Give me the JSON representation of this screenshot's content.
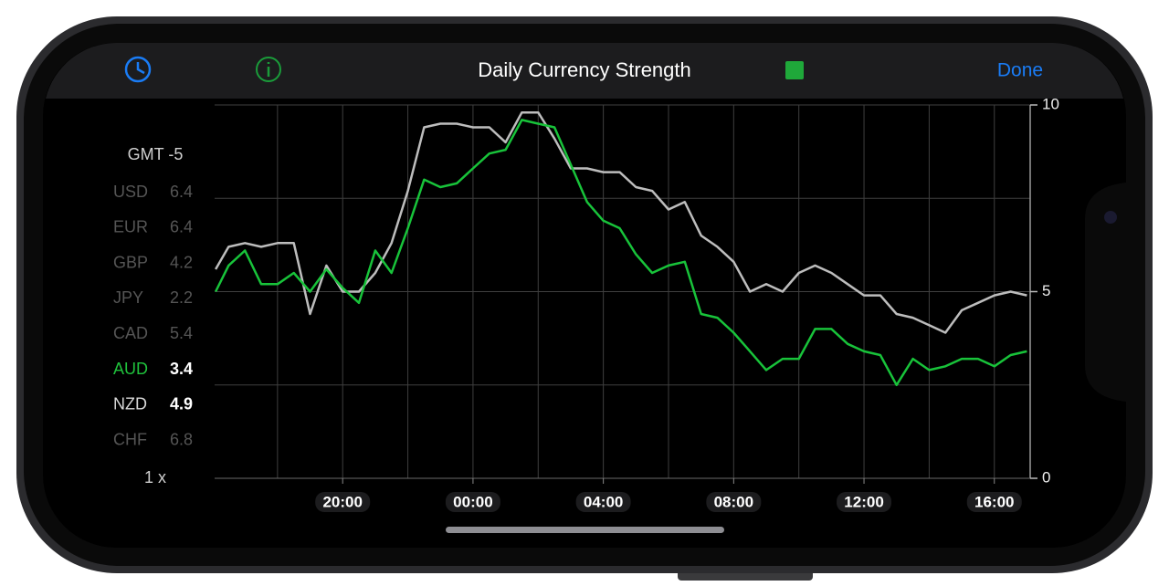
{
  "header": {
    "done": "Done"
  },
  "side_panel": {
    "timezone": "GMT -5",
    "speed": "1 x",
    "currencies": [
      {
        "code": "USD",
        "value": 6.4,
        "color": "#555555",
        "value_color": "#555555"
      },
      {
        "code": "EUR",
        "value": 6.4,
        "color": "#555555",
        "value_color": "#555555"
      },
      {
        "code": "GBP",
        "value": 4.2,
        "color": "#555555",
        "value_color": "#555555"
      },
      {
        "code": "JPY",
        "value": 2.2,
        "color": "#555555",
        "value_color": "#555555"
      },
      {
        "code": "CAD",
        "value": 5.4,
        "color": "#555555",
        "value_color": "#555555"
      },
      {
        "code": "AUD",
        "value": 3.4,
        "color": "#1fc23c",
        "value_color": "#ffffff"
      },
      {
        "code": "NZD",
        "value": 4.9,
        "color": "#d8d8d8",
        "value_color": "#ffffff"
      },
      {
        "code": "CHF",
        "value": 6.8,
        "color": "#555555",
        "value_color": "#555555"
      }
    ]
  },
  "chart_data": {
    "type": "line",
    "title": "Daily Currency Strength",
    "x": [
      16.1,
      16.5,
      17,
      17.5,
      18,
      18.5,
      19,
      19.5,
      20,
      20.5,
      21,
      21.5,
      22,
      22.5,
      23,
      23.5,
      24,
      24.5,
      25,
      25.5,
      26,
      26.5,
      27,
      27.5,
      28,
      28.5,
      29,
      29.5,
      30,
      30.5,
      31,
      31.5,
      32,
      32.5,
      33,
      33.5,
      34,
      34.5,
      35,
      35.5,
      36,
      36.5,
      37,
      37.5,
      38,
      38.5,
      39,
      39.5,
      40,
      40.5,
      41
    ],
    "series": [
      {
        "name": "NZD",
        "color": "#bdbdbd",
        "values": [
          5.6,
          6.2,
          6.3,
          6.2,
          6.3,
          6.3,
          4.4,
          5.7,
          5.0,
          5.0,
          5.5,
          6.3,
          7.7,
          9.4,
          9.5,
          9.5,
          9.4,
          9.4,
          9.0,
          9.8,
          9.8,
          9.1,
          8.3,
          8.3,
          8.2,
          8.2,
          7.8,
          7.7,
          7.2,
          7.4,
          6.5,
          6.2,
          5.8,
          5.0,
          5.2,
          5.0,
          5.5,
          5.7,
          5.5,
          5.2,
          4.9,
          4.9,
          4.4,
          4.3,
          4.1,
          3.9,
          4.5,
          4.7,
          4.9,
          5.0,
          4.9
        ]
      },
      {
        "name": "AUD",
        "color": "#18c33a",
        "values": [
          5.0,
          5.7,
          6.1,
          5.2,
          5.2,
          5.5,
          5.0,
          5.6,
          5.1,
          4.7,
          6.1,
          5.5,
          6.7,
          8.0,
          7.8,
          7.9,
          8.3,
          8.7,
          8.8,
          9.6,
          9.5,
          9.4,
          8.4,
          7.4,
          6.9,
          6.7,
          6.0,
          5.5,
          5.7,
          5.8,
          4.4,
          4.3,
          3.9,
          3.4,
          2.9,
          3.2,
          3.2,
          4.0,
          4.0,
          3.6,
          3.4,
          3.3,
          2.5,
          3.2,
          2.9,
          3.0,
          3.2,
          3.2,
          3.0,
          3.3,
          3.4
        ]
      }
    ],
    "xlim": [
      16.07,
      41.1
    ],
    "xticks": [
      {
        "value": 20,
        "label": "20:00"
      },
      {
        "value": 24,
        "label": "00:00"
      },
      {
        "value": 28,
        "label": "04:00"
      },
      {
        "value": 32,
        "label": "08:00"
      },
      {
        "value": 36,
        "label": "12:00"
      },
      {
        "value": 40,
        "label": "16:00"
      }
    ],
    "xgrid": [
      18,
      20,
      22,
      24,
      26,
      28,
      30,
      32,
      34,
      36,
      38,
      40
    ],
    "ylim": [
      0,
      10
    ],
    "yticks": [
      0,
      5,
      10
    ],
    "ygrid": [
      0,
      2.5,
      5,
      7.5,
      10
    ]
  }
}
